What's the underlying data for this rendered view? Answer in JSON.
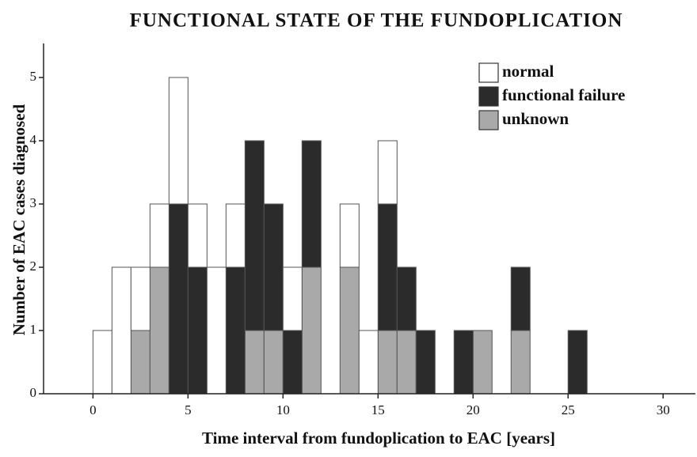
{
  "chart_data": {
    "type": "histogram",
    "title": "FUNCTIONAL STATE OF THE FUNDOPLICATION",
    "xlabel": "Time interval from fundoplication to EAC [years]",
    "ylabel": "Number of EAC cases diagnosed",
    "stacked": true,
    "legend": "top-right",
    "bins": [
      0,
      1,
      2,
      3,
      4,
      5,
      6,
      7,
      8,
      9,
      10,
      11,
      12,
      13,
      14,
      15,
      16,
      17,
      18,
      19,
      20,
      21,
      22,
      23,
      24,
      25,
      26
    ],
    "series": [
      {
        "name": "unknown",
        "color": "#a9a9a9",
        "values": [
          0,
          0,
          1,
          2,
          0,
          0,
          0,
          0,
          1,
          1,
          0,
          2,
          0,
          2,
          0,
          1,
          1,
          0,
          0,
          0,
          1,
          0,
          1,
          0,
          0,
          0
        ]
      },
      {
        "name": "functional failure",
        "color": "#2b2b2b",
        "values": [
          0,
          0,
          0,
          0,
          3,
          2,
          0,
          2,
          3,
          2,
          1,
          2,
          0,
          0,
          0,
          2,
          1,
          1,
          0,
          1,
          0,
          0,
          1,
          0,
          0,
          1
        ]
      },
      {
        "name": "normal",
        "color": "#ffffff",
        "values": [
          1,
          2,
          1,
          1,
          2,
          1,
          2,
          1,
          0,
          0,
          1,
          0,
          0,
          1,
          1,
          1,
          0,
          0,
          0,
          0,
          0,
          0,
          0,
          0,
          0,
          0
        ]
      }
    ],
    "legend_order": [
      2,
      1,
      0
    ],
    "xlim": [
      -2.6,
      31.7
    ],
    "xticks": [
      0,
      5,
      10,
      15,
      20,
      25,
      30
    ],
    "ylim": [
      0,
      5.5
    ],
    "yticks": [
      0,
      1,
      2,
      3,
      4,
      5
    ]
  }
}
